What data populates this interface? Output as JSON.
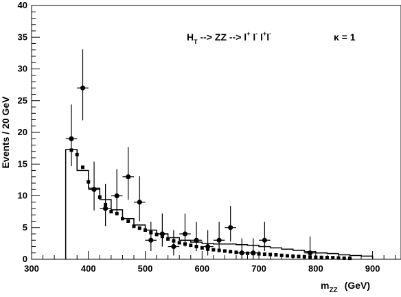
{
  "chart_data": {
    "type": "scatter",
    "title": "",
    "xlabel": {
      "main": "m",
      "sub": "ZZ",
      "unit": "(GeV)"
    },
    "ylabel": "Events / 20 GeV",
    "xlim": [
      300,
      950
    ],
    "ylim": [
      0,
      40
    ],
    "x_ticks": [
      300,
      400,
      500,
      600,
      700,
      800,
      900
    ],
    "y_ticks": [
      0,
      5,
      10,
      15,
      20,
      25,
      30,
      35,
      40
    ],
    "grid": false,
    "annotations": {
      "process": {
        "pre": "H",
        "pre_sub": "T",
        "arrow1": " --> ZZ --> l",
        "l1_sup": "+",
        "mid1": " l",
        "l2_sup": "-",
        "mid2": "  l",
        "l3_sup": "+",
        "mid3": "l",
        "l4_sup": "-"
      },
      "kappa": "κ = 1"
    },
    "series": [
      {
        "style": "points_with_errorbars",
        "x": [
          370,
          390,
          410,
          430,
          450,
          470,
          490,
          510,
          530,
          550,
          570,
          590,
          610,
          630,
          650,
          670,
          690,
          710,
          790
        ],
        "y": [
          19,
          27,
          11,
          8,
          10,
          13,
          9,
          3,
          4,
          2,
          4,
          3,
          2,
          3,
          5,
          1,
          1,
          3,
          1
        ],
        "yerr_low": [
          4.3,
          5.1,
          3.3,
          2.8,
          3.1,
          3.6,
          3.0,
          1.7,
          2.0,
          1.4,
          2.0,
          1.7,
          1.4,
          1.7,
          2.2,
          1.0,
          1.0,
          1.7,
          1.0
        ],
        "yerr_high": [
          5.4,
          6.1,
          4.4,
          3.9,
          4.2,
          4.7,
          4.1,
          2.9,
          3.2,
          2.6,
          3.2,
          2.9,
          2.6,
          2.9,
          3.4,
          2.3,
          2.3,
          2.9,
          2.6
        ]
      },
      {
        "style": "step_solid",
        "edges": [
          360,
          380,
          400,
          420,
          440,
          460,
          480,
          500,
          520,
          540,
          560,
          580,
          600,
          620,
          640,
          660,
          680,
          700,
          720,
          740,
          760,
          780,
          800,
          820,
          840,
          860,
          880,
          900
        ],
        "values": [
          17.3,
          14.0,
          11.2,
          9.4,
          7.8,
          6.4,
          5.4,
          4.6,
          4.0,
          3.4,
          3.0,
          2.7,
          2.5,
          2.4,
          2.4,
          2.3,
          2.2,
          2.0,
          1.8,
          1.6,
          1.4,
          1.2,
          1.0,
          0.9,
          0.7,
          0.6,
          0.5
        ]
      },
      {
        "style": "square_markers",
        "x": [
          370,
          380,
          390,
          400,
          410,
          420,
          430,
          440,
          450,
          460,
          470,
          480,
          490,
          500,
          510,
          520,
          530,
          540,
          550,
          560,
          570,
          580,
          590,
          600,
          610,
          620,
          630,
          640,
          650,
          660,
          670,
          680,
          690,
          700,
          710,
          720,
          730,
          740,
          750,
          760,
          770,
          780,
          790,
          800,
          810,
          820,
          830,
          840,
          850,
          860
        ],
        "y": [
          17.2,
          16.5,
          14.5,
          12.2,
          11.0,
          9.8,
          8.6,
          7.5,
          7.2,
          6.4,
          6.0,
          5.2,
          4.9,
          4.6,
          4.2,
          3.9,
          3.6,
          3.2,
          2.9,
          2.6,
          2.4,
          2.2,
          2.0,
          1.8,
          1.6,
          1.5,
          1.4,
          1.3,
          1.2,
          1.1,
          1.0,
          0.95,
          0.9,
          0.85,
          0.8,
          0.75,
          0.7,
          0.62,
          0.55,
          0.5,
          0.45,
          0.4,
          0.35,
          0.32,
          0.3,
          0.27,
          0.25,
          0.2,
          0.17,
          0.15
        ]
      }
    ]
  }
}
